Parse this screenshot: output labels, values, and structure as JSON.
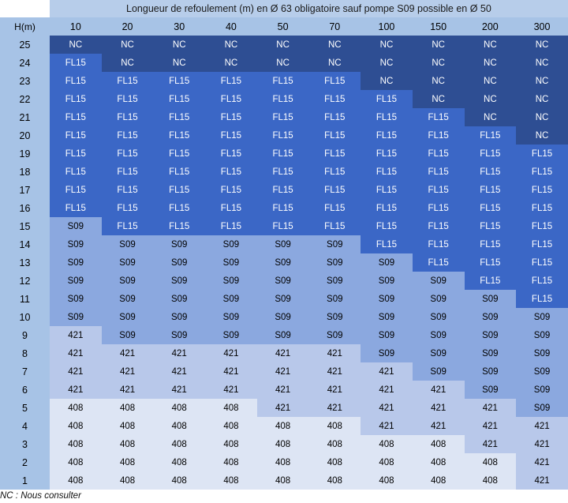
{
  "table": {
    "title": "Longueur de refoulement (m) en Ø 63 obligatoire sauf pompe S09 possible en Ø 50",
    "h_label": "H(m)",
    "lengths": [
      "10",
      "20",
      "30",
      "40",
      "50",
      "70",
      "100",
      "150",
      "200",
      "300"
    ],
    "rows": [
      {
        "h": "25",
        "cells": [
          "NC",
          "NC",
          "NC",
          "NC",
          "NC",
          "NC",
          "NC",
          "NC",
          "NC",
          "NC"
        ]
      },
      {
        "h": "24",
        "cells": [
          "FL15",
          "NC",
          "NC",
          "NC",
          "NC",
          "NC",
          "NC",
          "NC",
          "NC",
          "NC"
        ]
      },
      {
        "h": "23",
        "cells": [
          "FL15",
          "FL15",
          "FL15",
          "FL15",
          "FL15",
          "FL15",
          "NC",
          "NC",
          "NC",
          "NC"
        ]
      },
      {
        "h": "22",
        "cells": [
          "FL15",
          "FL15",
          "FL15",
          "FL15",
          "FL15",
          "FL15",
          "FL15",
          "NC",
          "NC",
          "NC"
        ]
      },
      {
        "h": "21",
        "cells": [
          "FL15",
          "FL15",
          "FL15",
          "FL15",
          "FL15",
          "FL15",
          "FL15",
          "FL15",
          "NC",
          "NC"
        ]
      },
      {
        "h": "20",
        "cells": [
          "FL15",
          "FL15",
          "FL15",
          "FL15",
          "FL15",
          "FL15",
          "FL15",
          "FL15",
          "FL15",
          "NC"
        ]
      },
      {
        "h": "19",
        "cells": [
          "FL15",
          "FL15",
          "FL15",
          "FL15",
          "FL15",
          "FL15",
          "FL15",
          "FL15",
          "FL15",
          "FL15"
        ]
      },
      {
        "h": "18",
        "cells": [
          "FL15",
          "FL15",
          "FL15",
          "FL15",
          "FL15",
          "FL15",
          "FL15",
          "FL15",
          "FL15",
          "FL15"
        ]
      },
      {
        "h": "17",
        "cells": [
          "FL15",
          "FL15",
          "FL15",
          "FL15",
          "FL15",
          "FL15",
          "FL15",
          "FL15",
          "FL15",
          "FL15"
        ]
      },
      {
        "h": "16",
        "cells": [
          "FL15",
          "FL15",
          "FL15",
          "FL15",
          "FL15",
          "FL15",
          "FL15",
          "FL15",
          "FL15",
          "FL15"
        ]
      },
      {
        "h": "15",
        "cells": [
          "S09",
          "FL15",
          "FL15",
          "FL15",
          "FL15",
          "FL15",
          "FL15",
          "FL15",
          "FL15",
          "FL15"
        ]
      },
      {
        "h": "14",
        "cells": [
          "S09",
          "S09",
          "S09",
          "S09",
          "S09",
          "S09",
          "FL15",
          "FL15",
          "FL15",
          "FL15"
        ]
      },
      {
        "h": "13",
        "cells": [
          "S09",
          "S09",
          "S09",
          "S09",
          "S09",
          "S09",
          "S09",
          "FL15",
          "FL15",
          "FL15"
        ]
      },
      {
        "h": "12",
        "cells": [
          "S09",
          "S09",
          "S09",
          "S09",
          "S09",
          "S09",
          "S09",
          "S09",
          "FL15",
          "FL15"
        ]
      },
      {
        "h": "11",
        "cells": [
          "S09",
          "S09",
          "S09",
          "S09",
          "S09",
          "S09",
          "S09",
          "S09",
          "S09",
          "FL15"
        ]
      },
      {
        "h": "10",
        "cells": [
          "S09",
          "S09",
          "S09",
          "S09",
          "S09",
          "S09",
          "S09",
          "S09",
          "S09",
          "S09"
        ]
      },
      {
        "h": "9",
        "cells": [
          "421",
          "S09",
          "S09",
          "S09",
          "S09",
          "S09",
          "S09",
          "S09",
          "S09",
          "S09"
        ]
      },
      {
        "h": "8",
        "cells": [
          "421",
          "421",
          "421",
          "421",
          "421",
          "421",
          "S09",
          "S09",
          "S09",
          "S09"
        ]
      },
      {
        "h": "7",
        "cells": [
          "421",
          "421",
          "421",
          "421",
          "421",
          "421",
          "421",
          "S09",
          "S09",
          "S09"
        ]
      },
      {
        "h": "6",
        "cells": [
          "421",
          "421",
          "421",
          "421",
          "421",
          "421",
          "421",
          "421",
          "S09",
          "S09"
        ]
      },
      {
        "h": "5",
        "cells": [
          "408",
          "408",
          "408",
          "408",
          "421",
          "421",
          "421",
          "421",
          "421",
          "S09"
        ]
      },
      {
        "h": "4",
        "cells": [
          "408",
          "408",
          "408",
          "408",
          "408",
          "408",
          "421",
          "421",
          "421",
          "421"
        ]
      },
      {
        "h": "3",
        "cells": [
          "408",
          "408",
          "408",
          "408",
          "408",
          "408",
          "408",
          "408",
          "421",
          "421"
        ]
      },
      {
        "h": "2",
        "cells": [
          "408",
          "408",
          "408",
          "408",
          "408",
          "408",
          "408",
          "408",
          "408",
          "421"
        ]
      },
      {
        "h": "1",
        "cells": [
          "408",
          "408",
          "408",
          "408",
          "408",
          "408",
          "408",
          "408",
          "408",
          "421"
        ]
      }
    ]
  },
  "footnote": "NC : Nous consulter"
}
